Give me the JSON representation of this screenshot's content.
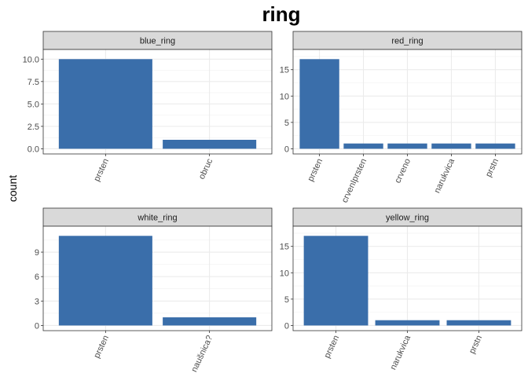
{
  "chart_data": {
    "type": "bar",
    "title": "ring",
    "xlabel": "",
    "ylabel": "count",
    "grid": true,
    "bar_color": "#3A6EAA",
    "strip_color": "#D9D9D9",
    "panels": [
      {
        "name": "blue_ring",
        "categories": [
          "prsten",
          "obruc"
        ],
        "values": [
          10,
          1
        ],
        "ylim": [
          0,
          10.5
        ],
        "yticks": [
          0,
          2.5,
          5,
          7.5,
          10
        ],
        "ytick_labels": [
          "0.0",
          "2.5",
          "5.0",
          "7.5",
          "10.0"
        ]
      },
      {
        "name": "red_ring",
        "categories": [
          "prsten",
          "crvenIprsten",
          "crveno",
          "narukvica",
          "prstn"
        ],
        "values": [
          17,
          1,
          1,
          1,
          1
        ],
        "ylim": [
          0,
          17.85
        ],
        "yticks": [
          0,
          5,
          10,
          15
        ],
        "ytick_labels": [
          "0",
          "5",
          "10",
          "15"
        ]
      },
      {
        "name": "white_ring",
        "categories": [
          "prsten",
          "naušnica?"
        ],
        "values": [
          11,
          1
        ],
        "ylim": [
          0,
          11.55
        ],
        "yticks": [
          0,
          3,
          6,
          9
        ],
        "ytick_labels": [
          "0",
          "3",
          "6",
          "9"
        ]
      },
      {
        "name": "yellow_ring",
        "categories": [
          "prsten",
          "narukvica",
          "prstn"
        ],
        "values": [
          17,
          1,
          1
        ],
        "ylim": [
          0,
          17.85
        ],
        "yticks": [
          0,
          5,
          10,
          15
        ],
        "ytick_labels": [
          "0",
          "5",
          "10",
          "15"
        ]
      }
    ]
  }
}
